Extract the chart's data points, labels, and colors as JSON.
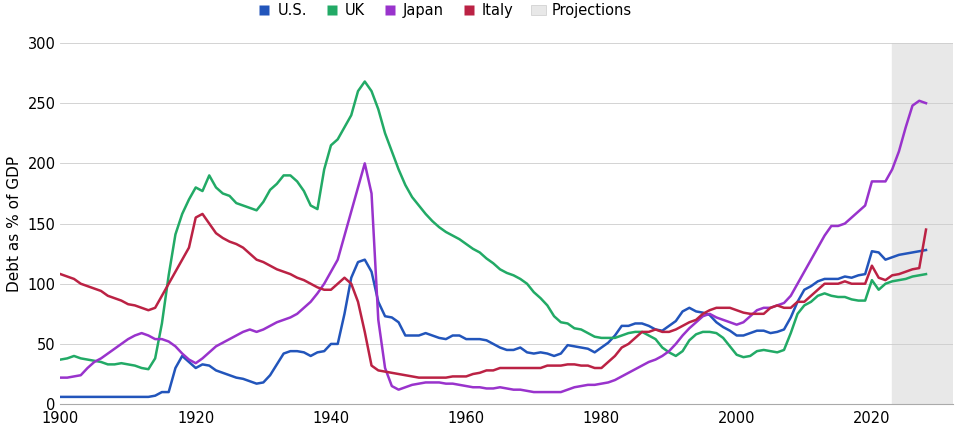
{
  "title": "",
  "ylabel": "Debt as % of GDP",
  "xlabel": "",
  "ylim": [
    0,
    300
  ],
  "xlim": [
    1900,
    2030
  ],
  "yticks": [
    0,
    50,
    100,
    150,
    200,
    250,
    300
  ],
  "xticks": [
    1900,
    1920,
    1940,
    1960,
    1980,
    2000,
    2020
  ],
  "projection_start": 2023,
  "background_color": "#ffffff",
  "projection_color": "#e8e8e8",
  "colors": {
    "US": "#2255bb",
    "UK": "#22aa66",
    "Japan": "#9933cc",
    "Italy": "#bb2244"
  },
  "US": {
    "years": [
      1900,
      1901,
      1902,
      1903,
      1904,
      1905,
      1906,
      1907,
      1908,
      1909,
      1910,
      1911,
      1912,
      1913,
      1914,
      1915,
      1916,
      1917,
      1918,
      1919,
      1920,
      1921,
      1922,
      1923,
      1924,
      1925,
      1926,
      1927,
      1928,
      1929,
      1930,
      1931,
      1932,
      1933,
      1934,
      1935,
      1936,
      1937,
      1938,
      1939,
      1940,
      1941,
      1942,
      1943,
      1944,
      1945,
      1946,
      1947,
      1948,
      1949,
      1950,
      1951,
      1952,
      1953,
      1954,
      1955,
      1956,
      1957,
      1958,
      1959,
      1960,
      1961,
      1962,
      1963,
      1964,
      1965,
      1966,
      1967,
      1968,
      1969,
      1970,
      1971,
      1972,
      1973,
      1974,
      1975,
      1976,
      1977,
      1978,
      1979,
      1980,
      1981,
      1982,
      1983,
      1984,
      1985,
      1986,
      1987,
      1988,
      1989,
      1990,
      1991,
      1992,
      1993,
      1994,
      1995,
      1996,
      1997,
      1998,
      1999,
      2000,
      2001,
      2002,
      2003,
      2004,
      2005,
      2006,
      2007,
      2008,
      2009,
      2010,
      2011,
      2012,
      2013,
      2014,
      2015,
      2016,
      2017,
      2018,
      2019,
      2020,
      2021,
      2022,
      2023,
      2024,
      2025,
      2026,
      2027,
      2028
    ],
    "values": [
      6,
      6,
      6,
      6,
      6,
      6,
      6,
      6,
      6,
      6,
      6,
      6,
      6,
      6,
      7,
      10,
      10,
      30,
      40,
      35,
      30,
      33,
      32,
      28,
      26,
      24,
      22,
      21,
      19,
      17,
      18,
      24,
      33,
      42,
      44,
      44,
      43,
      40,
      43,
      44,
      50,
      50,
      75,
      105,
      118,
      120,
      110,
      85,
      73,
      72,
      68,
      57,
      57,
      57,
      59,
      57,
      55,
      54,
      57,
      57,
      54,
      54,
      54,
      53,
      50,
      47,
      45,
      45,
      47,
      43,
      42,
      43,
      42,
      40,
      42,
      49,
      48,
      47,
      46,
      43,
      47,
      51,
      57,
      65,
      65,
      67,
      67,
      65,
      62,
      61,
      65,
      69,
      77,
      80,
      77,
      76,
      74,
      68,
      64,
      61,
      57,
      57,
      59,
      61,
      61,
      59,
      60,
      62,
      72,
      85,
      95,
      98,
      102,
      104,
      104,
      104,
      106,
      105,
      107,
      108,
      127,
      126,
      120,
      122,
      124,
      125,
      126,
      127,
      128
    ]
  },
  "UK": {
    "years": [
      1900,
      1901,
      1902,
      1903,
      1904,
      1905,
      1906,
      1907,
      1908,
      1909,
      1910,
      1911,
      1912,
      1913,
      1914,
      1915,
      1916,
      1917,
      1918,
      1919,
      1920,
      1921,
      1922,
      1923,
      1924,
      1925,
      1926,
      1927,
      1928,
      1929,
      1930,
      1931,
      1932,
      1933,
      1934,
      1935,
      1936,
      1937,
      1938,
      1939,
      1940,
      1941,
      1942,
      1943,
      1944,
      1945,
      1946,
      1947,
      1948,
      1949,
      1950,
      1951,
      1952,
      1953,
      1954,
      1955,
      1956,
      1957,
      1958,
      1959,
      1960,
      1961,
      1962,
      1963,
      1964,
      1965,
      1966,
      1967,
      1968,
      1969,
      1970,
      1971,
      1972,
      1973,
      1974,
      1975,
      1976,
      1977,
      1978,
      1979,
      1980,
      1981,
      1982,
      1983,
      1984,
      1985,
      1986,
      1987,
      1988,
      1989,
      1990,
      1991,
      1992,
      1993,
      1994,
      1995,
      1996,
      1997,
      1998,
      1999,
      2000,
      2001,
      2002,
      2003,
      2004,
      2005,
      2006,
      2007,
      2008,
      2009,
      2010,
      2011,
      2012,
      2013,
      2014,
      2015,
      2016,
      2017,
      2018,
      2019,
      2020,
      2021,
      2022,
      2023,
      2024,
      2025,
      2026,
      2027,
      2028
    ],
    "values": [
      37,
      38,
      40,
      38,
      37,
      36,
      35,
      33,
      33,
      34,
      33,
      32,
      30,
      29,
      38,
      67,
      107,
      141,
      158,
      170,
      180,
      177,
      190,
      180,
      175,
      173,
      167,
      165,
      163,
      161,
      168,
      178,
      183,
      190,
      190,
      185,
      177,
      165,
      162,
      195,
      215,
      220,
      230,
      240,
      260,
      268,
      260,
      245,
      225,
      210,
      195,
      182,
      172,
      165,
      158,
      152,
      147,
      143,
      140,
      137,
      133,
      129,
      126,
      121,
      117,
      112,
      109,
      107,
      104,
      100,
      93,
      88,
      82,
      73,
      68,
      67,
      63,
      62,
      59,
      56,
      55,
      55,
      55,
      57,
      59,
      60,
      60,
      57,
      54,
      47,
      43,
      40,
      44,
      53,
      58,
      60,
      60,
      59,
      55,
      48,
      41,
      39,
      40,
      44,
      45,
      44,
      43,
      45,
      59,
      75,
      82,
      85,
      90,
      92,
      90,
      89,
      89,
      87,
      86,
      86,
      103,
      95,
      100,
      102,
      103,
      104,
      106,
      107,
      108
    ]
  },
  "Japan": {
    "years": [
      1900,
      1901,
      1902,
      1903,
      1904,
      1905,
      1906,
      1907,
      1908,
      1909,
      1910,
      1911,
      1912,
      1913,
      1914,
      1915,
      1916,
      1917,
      1918,
      1919,
      1920,
      1921,
      1922,
      1923,
      1924,
      1925,
      1926,
      1927,
      1928,
      1929,
      1930,
      1931,
      1932,
      1933,
      1934,
      1935,
      1936,
      1937,
      1938,
      1939,
      1940,
      1941,
      1942,
      1943,
      1944,
      1945,
      1946,
      1947,
      1948,
      1949,
      1950,
      1951,
      1952,
      1953,
      1954,
      1955,
      1956,
      1957,
      1958,
      1959,
      1960,
      1961,
      1962,
      1963,
      1964,
      1965,
      1966,
      1967,
      1968,
      1969,
      1970,
      1971,
      1972,
      1973,
      1974,
      1975,
      1976,
      1977,
      1978,
      1979,
      1980,
      1981,
      1982,
      1983,
      1984,
      1985,
      1986,
      1987,
      1988,
      1989,
      1990,
      1991,
      1992,
      1993,
      1994,
      1995,
      1996,
      1997,
      1998,
      1999,
      2000,
      2001,
      2002,
      2003,
      2004,
      2005,
      2006,
      2007,
      2008,
      2009,
      2010,
      2011,
      2012,
      2013,
      2014,
      2015,
      2016,
      2017,
      2018,
      2019,
      2020,
      2021,
      2022,
      2023,
      2024,
      2025,
      2026,
      2027,
      2028
    ],
    "values": [
      22,
      22,
      23,
      24,
      30,
      35,
      38,
      42,
      46,
      50,
      54,
      57,
      59,
      57,
      54,
      54,
      52,
      48,
      42,
      37,
      34,
      38,
      43,
      48,
      51,
      54,
      57,
      60,
      62,
      60,
      62,
      65,
      68,
      70,
      72,
      75,
      80,
      85,
      92,
      100,
      110,
      120,
      140,
      160,
      180,
      200,
      175,
      70,
      30,
      15,
      12,
      14,
      16,
      17,
      18,
      18,
      18,
      17,
      17,
      16,
      15,
      14,
      14,
      13,
      13,
      14,
      13,
      12,
      12,
      11,
      10,
      10,
      10,
      10,
      10,
      12,
      14,
      15,
      16,
      16,
      17,
      18,
      20,
      23,
      26,
      29,
      32,
      35,
      37,
      40,
      44,
      50,
      57,
      63,
      68,
      73,
      75,
      72,
      70,
      68,
      66,
      68,
      73,
      78,
      80,
      80,
      82,
      84,
      90,
      100,
      110,
      120,
      130,
      140,
      148,
      148,
      150,
      155,
      160,
      165,
      185,
      185,
      185,
      195,
      210,
      230,
      248,
      252,
      250
    ]
  },
  "Italy": {
    "years": [
      1900,
      1901,
      1902,
      1903,
      1904,
      1905,
      1906,
      1907,
      1908,
      1909,
      1910,
      1911,
      1912,
      1913,
      1914,
      1915,
      1916,
      1917,
      1918,
      1919,
      1920,
      1921,
      1922,
      1923,
      1924,
      1925,
      1926,
      1927,
      1928,
      1929,
      1930,
      1931,
      1932,
      1933,
      1934,
      1935,
      1936,
      1937,
      1938,
      1939,
      1940,
      1941,
      1942,
      1943,
      1944,
      1945,
      1946,
      1947,
      1948,
      1949,
      1950,
      1951,
      1952,
      1953,
      1954,
      1955,
      1956,
      1957,
      1958,
      1959,
      1960,
      1961,
      1962,
      1963,
      1964,
      1965,
      1966,
      1967,
      1968,
      1969,
      1970,
      1971,
      1972,
      1973,
      1974,
      1975,
      1976,
      1977,
      1978,
      1979,
      1980,
      1981,
      1982,
      1983,
      1984,
      1985,
      1986,
      1987,
      1988,
      1989,
      1990,
      1991,
      1992,
      1993,
      1994,
      1995,
      1996,
      1997,
      1998,
      1999,
      2000,
      2001,
      2002,
      2003,
      2004,
      2005,
      2006,
      2007,
      2008,
      2009,
      2010,
      2011,
      2012,
      2013,
      2014,
      2015,
      2016,
      2017,
      2018,
      2019,
      2020,
      2021,
      2022,
      2023,
      2024,
      2025,
      2026,
      2027,
      2028
    ],
    "values": [
      108,
      106,
      104,
      100,
      98,
      96,
      94,
      90,
      88,
      86,
      83,
      82,
      80,
      78,
      80,
      90,
      100,
      110,
      120,
      130,
      155,
      158,
      150,
      142,
      138,
      135,
      133,
      130,
      125,
      120,
      118,
      115,
      112,
      110,
      108,
      105,
      103,
      100,
      97,
      95,
      95,
      100,
      105,
      100,
      85,
      60,
      32,
      28,
      27,
      26,
      25,
      24,
      23,
      22,
      22,
      22,
      22,
      22,
      23,
      23,
      23,
      25,
      26,
      28,
      28,
      30,
      30,
      30,
      30,
      30,
      30,
      30,
      32,
      32,
      32,
      33,
      33,
      32,
      32,
      30,
      30,
      35,
      40,
      47,
      50,
      55,
      60,
      60,
      62,
      60,
      60,
      62,
      65,
      68,
      70,
      75,
      78,
      80,
      80,
      80,
      78,
      76,
      75,
      75,
      75,
      80,
      82,
      80,
      80,
      85,
      85,
      90,
      95,
      100,
      100,
      100,
      102,
      100,
      100,
      100,
      115,
      105,
      103,
      107,
      108,
      110,
      112,
      113,
      145
    ]
  }
}
